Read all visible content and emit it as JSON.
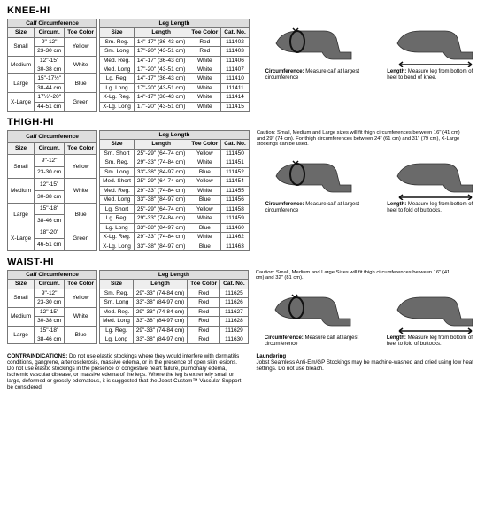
{
  "sections": {
    "knee": {
      "title": "KNEE-HI",
      "calfHeader": "Calf Circumference",
      "legHeader": "Leg Length",
      "calfCols": [
        "Size",
        "Circum.",
        "Toe Color"
      ],
      "legCols": [
        "Size",
        "Length",
        "Toe Color",
        "Cat. No."
      ],
      "calfRows": [
        [
          "Small",
          "9\"-12\"",
          "Yellow"
        ],
        [
          "",
          "23-30 cm",
          ""
        ],
        [
          "Medium",
          "12\"-15\"",
          "White"
        ],
        [
          "",
          "30-38 cm",
          ""
        ],
        [
          "Large",
          "15\"-17½\"",
          "Blue"
        ],
        [
          "",
          "38-44 cm",
          ""
        ],
        [
          "X-Large",
          "17½\"-20\"",
          "Green"
        ],
        [
          "",
          "44-51 cm",
          ""
        ]
      ],
      "legRows": [
        [
          "Sm. Reg.",
          "14\"-17\" (36-43 cm)",
          "Red",
          "111402"
        ],
        [
          "Sm. Long",
          "17\"-20\" (43-51 cm)",
          "Red",
          "111403"
        ],
        [
          "Med. Reg.",
          "14\"-17\" (36-43 cm)",
          "White",
          "111406"
        ],
        [
          "Med. Long",
          "17\"-20\" (43-51 cm)",
          "White",
          "111407"
        ],
        [
          "Lg. Reg.",
          "14\"-17\" (36-43 cm)",
          "White",
          "111410"
        ],
        [
          "Lg. Long",
          "17\"-20\" (43-51 cm)",
          "White",
          "111411"
        ],
        [
          "X-Lg. Reg.",
          "14\"-17\" (36-43 cm)",
          "White",
          "111414"
        ],
        [
          "X-Lg. Long",
          "17\"-20\" (43-51 cm)",
          "White",
          "111415"
        ]
      ],
      "circText": "Circumference: Measure calf at largest circumference",
      "lenText": "Length: Measure leg from bottom of heel to bend of knee."
    },
    "thigh": {
      "title": "THIGH-HI",
      "caution": "Caution:  Small, Medium and Large sizes will fit thigh circumferences between 16\" (41 cm) and 29\" (74 cm). For thigh circumferences between 24\" (61 cm) and 31\" (79 cm), X-Large stockings can be used.",
      "calfRows": [
        [
          "Small",
          "9\"-12\"",
          "Yellow"
        ],
        [
          "",
          "23-30 cm",
          ""
        ],
        [
          "Medium",
          "12\"-15\"",
          "White"
        ],
        [
          "",
          "30-38 cm",
          ""
        ],
        [
          "Large",
          "15\"-18\"",
          "Blue"
        ],
        [
          "",
          "38-46 cm",
          ""
        ],
        [
          "X-Large",
          "18\"-20\"",
          "Green"
        ],
        [
          "",
          "46-51 cm",
          ""
        ]
      ],
      "legRows": [
        [
          "Sm. Short",
          "25\"-29\" (64-74 cm)",
          "Yellow",
          "111450"
        ],
        [
          "Sm. Reg.",
          "29\"-33\" (74-84 cm)",
          "White",
          "111451"
        ],
        [
          "Sm. Long",
          "33\"-38\" (84-97 cm)",
          "Blue",
          "111452"
        ],
        [
          "Med. Short",
          "25\"-29\" (64-74 cm)",
          "Yellow",
          "111454"
        ],
        [
          "Med. Reg.",
          "29\"-33\" (74-84 cm)",
          "White",
          "111455"
        ],
        [
          "Med. Long",
          "33\"-38\" (84-97 cm)",
          "Blue",
          "111456"
        ],
        [
          "Lg. Short",
          "25\"-29\" (64-74 cm)",
          "Yellow",
          "111458"
        ],
        [
          "Lg. Reg.",
          "29\"-33\" (74-84 cm)",
          "White",
          "111459"
        ],
        [
          "Lg. Long",
          "33\"-38\" (84-97 cm)",
          "Blue",
          "111460"
        ],
        [
          "X-Lg. Reg.",
          "29\"-33\" (74-84 cm)",
          "White",
          "111462"
        ],
        [
          "X-Lg. Long",
          "33\"-38\" (84-97 cm)",
          "Blue",
          "111463"
        ]
      ],
      "circText": "Circumference: Measure calf at largest circumference",
      "lenText": "Length: Measure leg from bottom of heel to fold of buttocks."
    },
    "waist": {
      "title": "WAIST-HI",
      "caution": "Caution:  Small, Medium and Large Sizes will fit thigh circumferences between 16\" (41 cm) and 32\" (81 cm).",
      "calfRows": [
        [
          "Small",
          "9\"-12\"",
          "Yellow"
        ],
        [
          "",
          "23-30 cm",
          ""
        ],
        [
          "Medium",
          "12\"-15\"",
          "White"
        ],
        [
          "",
          "30-38 cm",
          ""
        ],
        [
          "Large",
          "15\"-18\"",
          "Blue"
        ],
        [
          "",
          "38-46 cm",
          ""
        ]
      ],
      "legRows": [
        [
          "Sm. Reg.",
          "29\"-33\" (74-84 cm)",
          "Red",
          "111625"
        ],
        [
          "Sm. Long",
          "33\"-38\" (84-97 cm)",
          "Red",
          "111626"
        ],
        [
          "Med. Reg.",
          "29\"-33\" (74-84 cm)",
          "Red",
          "111627"
        ],
        [
          "Med. Long",
          "33\"-38\" (84-97 cm)",
          "Red",
          "111628"
        ],
        [
          "Lg. Reg.",
          "29\"-33\" (74-84 cm)",
          "Red",
          "111629"
        ],
        [
          "Lg. Long",
          "33\"-38\" (84-97 cm)",
          "Red",
          "111630"
        ]
      ],
      "circText": "Circumference: Measure calf at largest circumference",
      "lenText": "Length: Measure leg from bottom of heel to fold of buttocks."
    }
  },
  "bottom": {
    "contraTitle": "CONTRAINDICATIONS:",
    "contraText": " Do not use elastic stockings where they would interfere with dermatitis conditions, gangrene, arteriosclerosis, massive edema, or in the presence of open skin lesions. Do not use elastic stockings in the presence of congestive heart failure, pulmonary edema, ischemic vascular disease, or massive edema of the legs. Where the leg is extremely small or large, deformed or grossly edematous, it is suggested that the Jobst-Custom™ Vascular Support be considered.",
    "launderTitle": "Laundering",
    "launderText": "Jobst Seamless Anti-Em/GP Stockings may be machine-washed and dried using low heat settings. Do not use bleach."
  },
  "styling": {
    "legSvg": {
      "width": 90,
      "height": 55,
      "stroke": "#444",
      "fill": "#555",
      "arrowColor": "#222"
    }
  },
  "labels": {
    "circPrefix": "Circumference:",
    "lenPrefix": "Length:"
  }
}
